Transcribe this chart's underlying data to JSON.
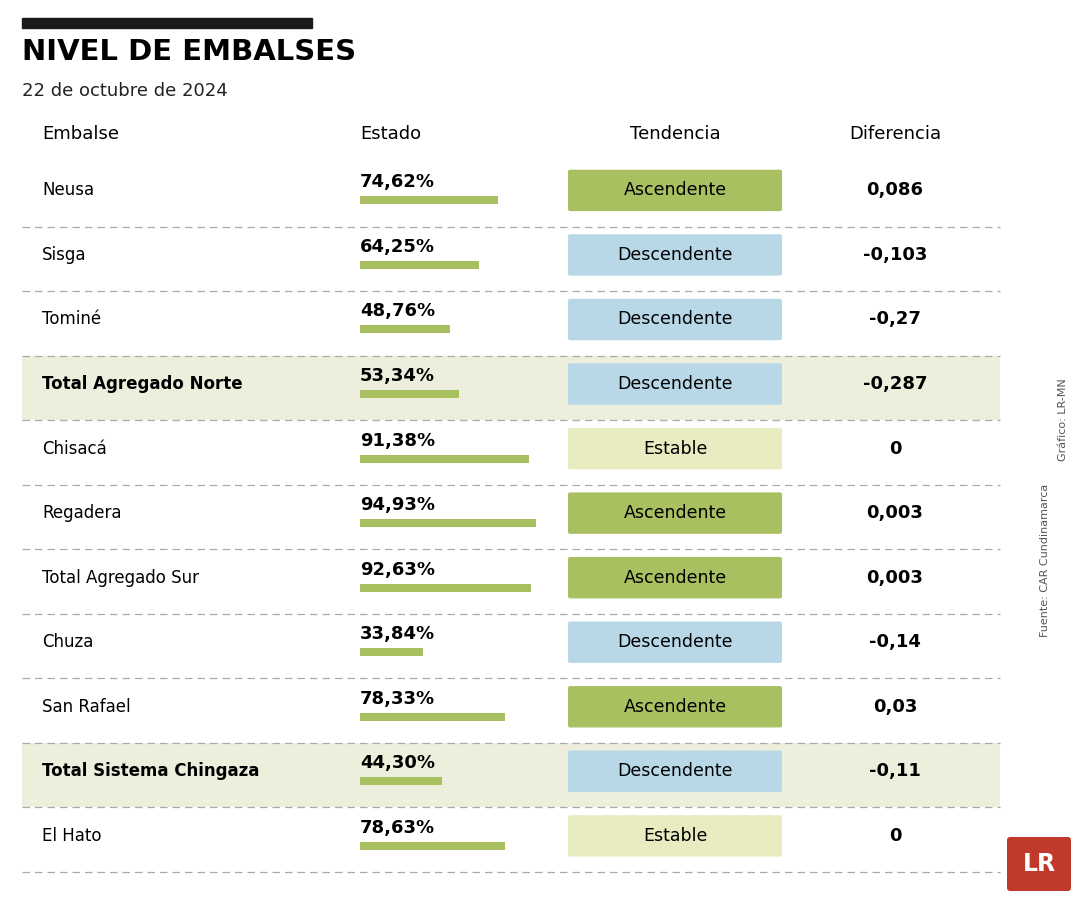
{
  "title": "NIVEL DE EMBALSES",
  "subtitle": "22 de octubre de 2024",
  "col_headers": [
    "Embalse",
    "Estado",
    "Tendencia",
    "Diferencia"
  ],
  "rows": [
    {
      "name": "Neusa",
      "estado": "74,62%",
      "pct": 74.62,
      "tendencia": "Ascendente",
      "tend_color": "green",
      "diferencia": "0,086",
      "row_bg": "white",
      "bold": false
    },
    {
      "name": "Sisga",
      "estado": "64,25%",
      "pct": 64.25,
      "tendencia": "Descendente",
      "tend_color": "blue",
      "diferencia": "-0,103",
      "row_bg": "white",
      "bold": false
    },
    {
      "name": "Tominé",
      "estado": "48,76%",
      "pct": 48.76,
      "tendencia": "Descendente",
      "tend_color": "blue",
      "diferencia": "-0,27",
      "row_bg": "white",
      "bold": false
    },
    {
      "name": "Total Agregado Norte",
      "estado": "53,34%",
      "pct": 53.34,
      "tendencia": "Descendente",
      "tend_color": "blue",
      "diferencia": "-0,287",
      "row_bg": "beige",
      "bold": true
    },
    {
      "name": "Chisacá",
      "estado": "91,38%",
      "pct": 91.38,
      "tendencia": "Estable",
      "tend_color": "yellow",
      "diferencia": "0",
      "row_bg": "white",
      "bold": false
    },
    {
      "name": "Regadera",
      "estado": "94,93%",
      "pct": 94.93,
      "tendencia": "Ascendente",
      "tend_color": "green",
      "diferencia": "0,003",
      "row_bg": "white",
      "bold": false
    },
    {
      "name": "Total Agregado Sur",
      "estado": "92,63%",
      "pct": 92.63,
      "tendencia": "Ascendente",
      "tend_color": "green",
      "diferencia": "0,003",
      "row_bg": "white",
      "bold": false
    },
    {
      "name": "Chuza",
      "estado": "33,84%",
      "pct": 33.84,
      "tendencia": "Descendente",
      "tend_color": "blue",
      "diferencia": "-0,14",
      "row_bg": "white",
      "bold": false
    },
    {
      "name": "San Rafael",
      "estado": "78,33%",
      "pct": 78.33,
      "tendencia": "Ascendente",
      "tend_color": "green",
      "diferencia": "0,03",
      "row_bg": "white",
      "bold": false
    },
    {
      "name": "Total Sistema Chingaza",
      "estado": "44,30%",
      "pct": 44.3,
      "tendencia": "Descendente",
      "tend_color": "blue",
      "diferencia": "-0,11",
      "row_bg": "beige",
      "bold": true
    },
    {
      "name": "El Hato",
      "estado": "78,63%",
      "pct": 78.63,
      "tendencia": "Estable",
      "tend_color": "yellow",
      "diferencia": "0",
      "row_bg": "white",
      "bold": false
    }
  ],
  "color_green": "#a8c060",
  "color_blue": "#b8d8e8",
  "color_yellow": "#e8ecc0",
  "color_beige": "#eeeedd",
  "color_white": "#ffffff",
  "bar_color": "#a8c060",
  "top_bar_color": "#1a1a1a",
  "source_text": "Fuente: CAR Cundinamarca",
  "credit_text": "Gráfico: LR-MN",
  "logo_text": "LR",
  "logo_bg": "#c0392b"
}
